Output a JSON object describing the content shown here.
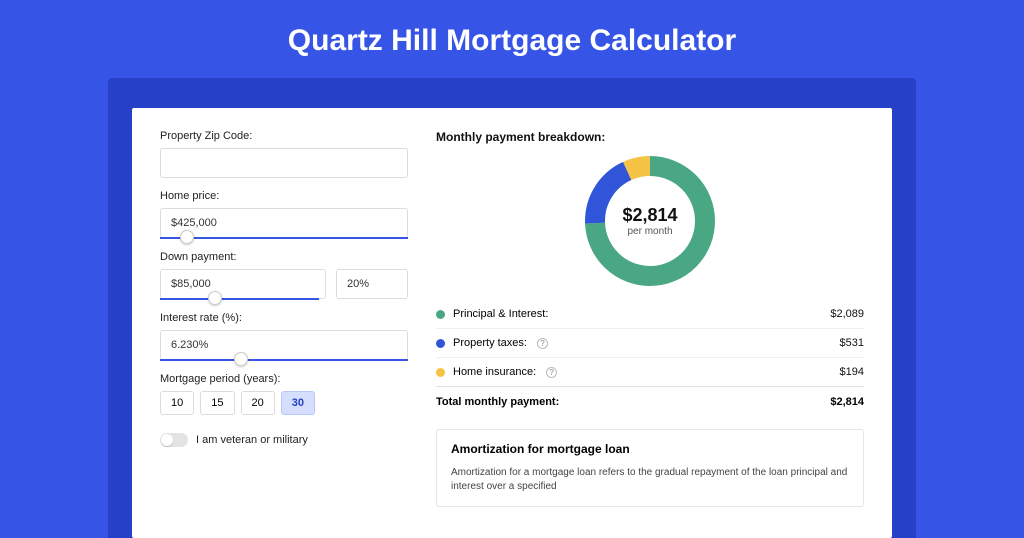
{
  "page": {
    "title": "Quartz Hill Mortgage Calculator",
    "bg_color": "#3654e6",
    "band_color": "#2640c8"
  },
  "form": {
    "zip": {
      "label": "Property Zip Code:",
      "value": ""
    },
    "home_price": {
      "label": "Home price:",
      "value": "$425,000",
      "slider_pct": 8
    },
    "down_payment": {
      "label": "Down payment:",
      "amount": "$85,000",
      "percent": "20%",
      "slider_pct": 20
    },
    "interest": {
      "label": "Interest rate (%):",
      "value": "6.230%",
      "slider_pct": 30
    },
    "period": {
      "label": "Mortgage period (years):",
      "options": [
        "10",
        "15",
        "20",
        "30"
      ],
      "selected": "30"
    },
    "veteran": {
      "label": "I am veteran or military",
      "on": false
    }
  },
  "breakdown": {
    "title": "Monthly payment breakdown:",
    "center_value": "$2,814",
    "center_sub": "per month",
    "donut": {
      "size": 130,
      "thickness": 20,
      "slices": [
        {
          "color": "#4aa784",
          "pct": 74.3
        },
        {
          "color": "#3155d8",
          "pct": 18.8
        },
        {
          "color": "#f5c445",
          "pct": 6.9
        }
      ]
    },
    "items": [
      {
        "dot": "#4aa784",
        "label": "Principal & Interest:",
        "help": false,
        "value": "$2,089"
      },
      {
        "dot": "#3155d8",
        "label": "Property taxes:",
        "help": true,
        "value": "$531"
      },
      {
        "dot": "#f5c445",
        "label": "Home insurance:",
        "help": true,
        "value": "$194"
      }
    ],
    "total_label": "Total monthly payment:",
    "total_value": "$2,814"
  },
  "amortization": {
    "title": "Amortization for mortgage loan",
    "text": "Amortization for a mortgage loan refers to the gradual repayment of the loan principal and interest over a specified"
  }
}
